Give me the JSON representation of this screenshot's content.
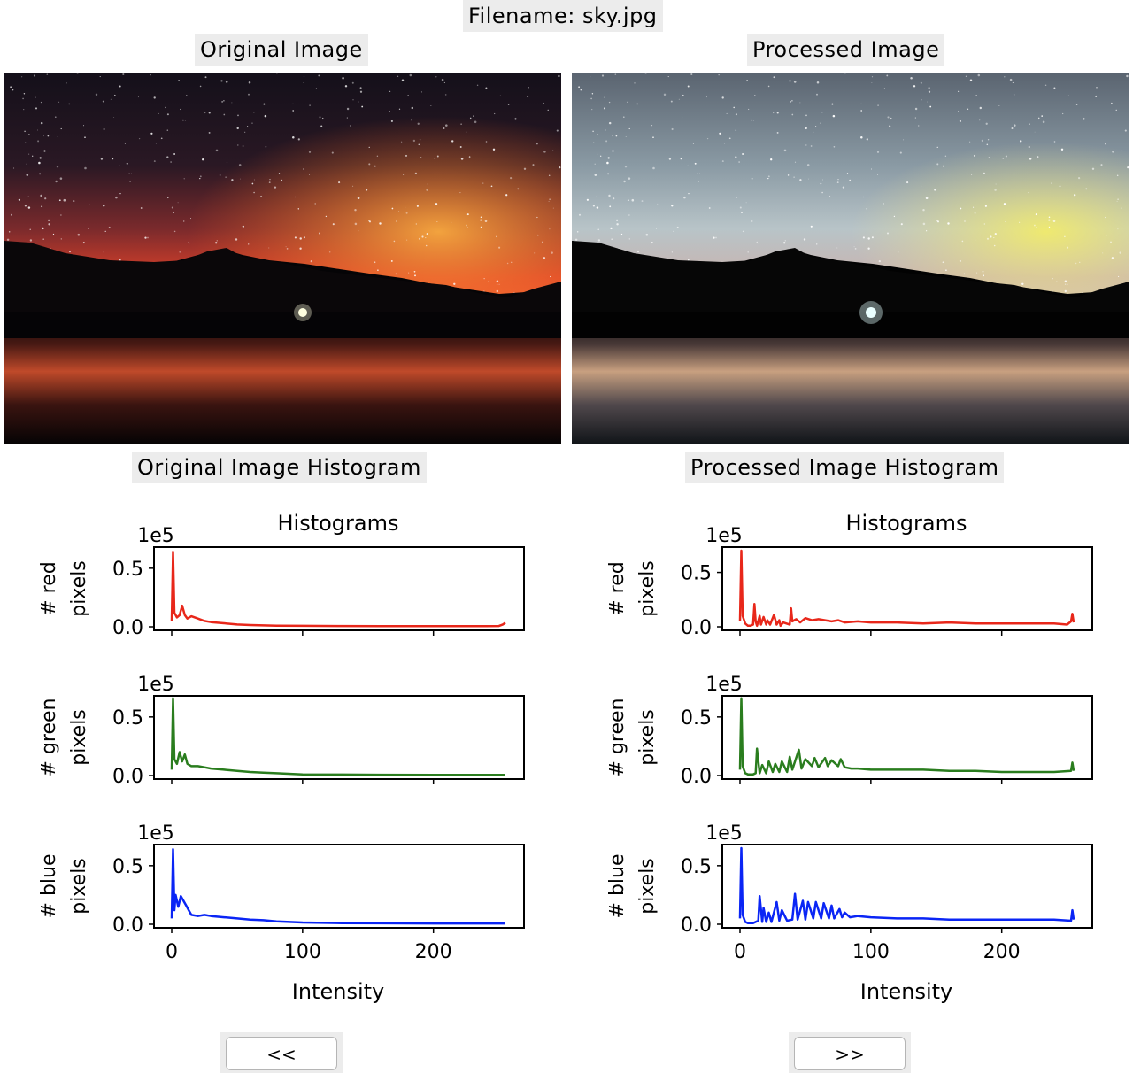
{
  "window": {
    "filename_label": "Filename: sky.jpg"
  },
  "panels": {
    "original": {
      "title": "Original Image",
      "histogram_title": "Original Image Histogram",
      "image_description": "Night sky with milky way over mountain ridge and lake, red glow"
    },
    "processed": {
      "title": "Processed Image",
      "histogram_title": "Processed Image Histogram",
      "image_description": "Equalized night sky with milky way over mountain ridge and lake, pale blue tones"
    }
  },
  "navigation": {
    "prev_label": "<<",
    "next_label": ">>"
  },
  "icons": [
    "original-photo-image",
    "processed-photo-image"
  ],
  "colors": {
    "red": "#e8271a",
    "green": "#2a7d1e",
    "blue": "#0a25f5",
    "label_bg": "#ececec"
  },
  "chart_data": [
    {
      "type": "line",
      "title": "Histograms",
      "xlabel": "Intensity",
      "xlim": [
        0,
        255
      ],
      "xticks": [
        "0",
        "100",
        "200"
      ],
      "offset_text": "1e5",
      "subplots": [
        {
          "name": "red",
          "ylabel": "# red pixels",
          "ylim": [
            0,
            0.65
          ],
          "yticks": [
            "0.0",
            "0.5"
          ],
          "x": [
            0,
            1,
            2,
            4,
            6,
            8,
            10,
            12,
            15,
            20,
            25,
            30,
            40,
            50,
            60,
            80,
            100,
            130,
            160,
            200,
            240,
            250,
            253,
            255
          ],
          "values": [
            0.05,
            0.64,
            0.12,
            0.08,
            0.1,
            0.18,
            0.1,
            0.07,
            0.09,
            0.07,
            0.05,
            0.04,
            0.03,
            0.02,
            0.015,
            0.01,
            0.008,
            0.007,
            0.006,
            0.006,
            0.006,
            0.007,
            0.02,
            0.035
          ]
        },
        {
          "name": "green",
          "ylabel": "# green pixels",
          "ylim": [
            0,
            0.65
          ],
          "yticks": [
            "0.0",
            "0.5"
          ],
          "x": [
            0,
            1,
            2,
            4,
            6,
            8,
            10,
            12,
            15,
            20,
            25,
            30,
            40,
            50,
            60,
            70,
            80,
            100,
            130,
            160,
            200,
            240,
            255
          ],
          "values": [
            0.05,
            0.66,
            0.14,
            0.1,
            0.2,
            0.12,
            0.18,
            0.1,
            0.08,
            0.08,
            0.07,
            0.06,
            0.05,
            0.04,
            0.03,
            0.025,
            0.02,
            0.01,
            0.008,
            0.007,
            0.006,
            0.006,
            0.006
          ]
        },
        {
          "name": "blue",
          "ylabel": "# blue pixels",
          "ylim": [
            0,
            0.65
          ],
          "yticks": [
            "0.0",
            "0.5"
          ],
          "x": [
            0,
            1,
            2,
            3,
            5,
            7,
            9,
            11,
            13,
            15,
            20,
            25,
            30,
            40,
            50,
            60,
            70,
            80,
            100,
            130,
            160,
            200,
            240,
            255
          ],
          "values": [
            0.05,
            0.64,
            0.12,
            0.25,
            0.15,
            0.24,
            0.2,
            0.16,
            0.12,
            0.08,
            0.07,
            0.08,
            0.07,
            0.06,
            0.05,
            0.04,
            0.035,
            0.025,
            0.015,
            0.01,
            0.008,
            0.007,
            0.007,
            0.007
          ]
        }
      ]
    },
    {
      "type": "line",
      "title": "Histograms",
      "xlabel": "Intensity",
      "xlim": [
        0,
        255
      ],
      "xticks": [
        "0",
        "100",
        "200"
      ],
      "offset_text": "1e5",
      "subplots": [
        {
          "name": "red",
          "ylabel": "# red pixels",
          "ylim": [
            0,
            0.7
          ],
          "yticks": [
            "0.0",
            "0.5"
          ],
          "x": [
            0,
            1,
            2,
            4,
            6,
            8,
            10,
            11,
            12,
            13,
            15,
            16,
            18,
            20,
            21,
            23,
            26,
            28,
            30,
            31,
            33,
            38,
            39,
            40,
            43,
            46,
            50,
            55,
            60,
            65,
            70,
            75,
            80,
            90,
            100,
            120,
            140,
            160,
            180,
            200,
            220,
            240,
            250,
            253,
            254,
            255
          ],
          "values": [
            0.05,
            0.7,
            0.1,
            0.03,
            0.01,
            0.01,
            0.02,
            0.21,
            0.05,
            0.01,
            0.1,
            0.02,
            0.09,
            0.02,
            0.06,
            0.02,
            0.11,
            0.02,
            0.06,
            0.01,
            0.04,
            0.02,
            0.17,
            0.05,
            0.07,
            0.04,
            0.08,
            0.06,
            0.07,
            0.06,
            0.05,
            0.06,
            0.04,
            0.05,
            0.04,
            0.04,
            0.03,
            0.04,
            0.03,
            0.03,
            0.03,
            0.03,
            0.02,
            0.05,
            0.12,
            0.04
          ]
        },
        {
          "name": "green",
          "ylabel": "# green pixels",
          "ylim": [
            0,
            0.65
          ],
          "yticks": [
            "0.0",
            "0.5"
          ],
          "x": [
            0,
            1,
            2,
            4,
            6,
            8,
            10,
            12,
            13,
            15,
            17,
            20,
            22,
            25,
            27,
            30,
            32,
            36,
            38,
            40,
            45,
            47,
            50,
            55,
            57,
            60,
            65,
            67,
            70,
            75,
            77,
            80,
            85,
            90,
            100,
            120,
            140,
            160,
            180,
            200,
            220,
            240,
            253,
            254,
            255
          ],
          "values": [
            0.05,
            0.66,
            0.08,
            0.02,
            0.01,
            0.01,
            0.01,
            0.02,
            0.23,
            0.02,
            0.09,
            0.02,
            0.12,
            0.03,
            0.1,
            0.03,
            0.12,
            0.03,
            0.16,
            0.05,
            0.22,
            0.06,
            0.14,
            0.08,
            0.15,
            0.07,
            0.15,
            0.08,
            0.13,
            0.08,
            0.14,
            0.07,
            0.06,
            0.06,
            0.05,
            0.05,
            0.05,
            0.04,
            0.04,
            0.03,
            0.03,
            0.03,
            0.04,
            0.11,
            0.04
          ]
        },
        {
          "name": "blue",
          "ylabel": "# blue pixels",
          "ylim": [
            0,
            0.65
          ],
          "yticks": [
            "0.0",
            "0.5"
          ],
          "x": [
            0,
            1,
            2,
            4,
            6,
            8,
            10,
            12,
            14,
            15,
            17,
            18,
            20,
            22,
            24,
            28,
            30,
            32,
            36,
            40,
            42,
            44,
            48,
            50,
            52,
            56,
            58,
            62,
            64,
            68,
            70,
            72,
            76,
            78,
            80,
            84,
            90,
            100,
            120,
            140,
            160,
            180,
            200,
            220,
            240,
            253,
            254,
            255
          ],
          "values": [
            0.05,
            0.65,
            0.08,
            0.02,
            0.01,
            0.01,
            0.01,
            0.02,
            0.03,
            0.24,
            0.02,
            0.14,
            0.02,
            0.1,
            0.02,
            0.19,
            0.03,
            0.12,
            0.03,
            0.04,
            0.26,
            0.04,
            0.2,
            0.04,
            0.19,
            0.05,
            0.19,
            0.05,
            0.18,
            0.05,
            0.16,
            0.05,
            0.13,
            0.06,
            0.1,
            0.06,
            0.07,
            0.06,
            0.05,
            0.05,
            0.04,
            0.04,
            0.04,
            0.04,
            0.04,
            0.03,
            0.12,
            0.04
          ]
        }
      ]
    }
  ]
}
